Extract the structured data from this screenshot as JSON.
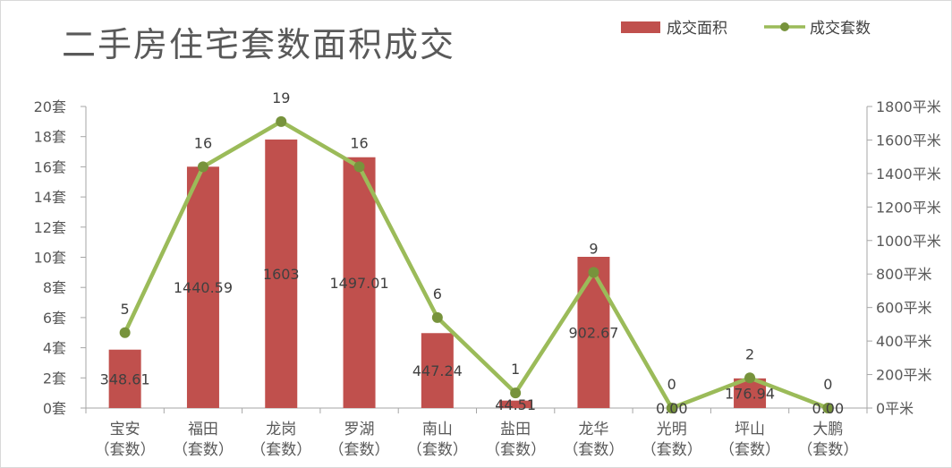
{
  "chart_data": {
    "type": "bar",
    "title": "二手房住宅套数面积成交",
    "categories": [
      [
        "宝安",
        "（套数）"
      ],
      [
        "福田",
        "（套数）"
      ],
      [
        "龙岗",
        "（套数）"
      ],
      [
        "罗湖",
        "（套数）"
      ],
      [
        "南山",
        "（套数）"
      ],
      [
        "盐田",
        "（套数）"
      ],
      [
        "龙华",
        "（套数）"
      ],
      [
        "光明",
        "（套数）"
      ],
      [
        "坪山",
        "（套数）"
      ],
      [
        "大鹏",
        "（套数）"
      ]
    ],
    "series": [
      {
        "name": "成交面积",
        "type": "bar",
        "axis": "right",
        "color": "#c0504d",
        "values": [
          348.61,
          1440.59,
          1603,
          1497.01,
          447.24,
          44.51,
          902.67,
          0,
          176.94,
          0
        ],
        "labels": [
          "348.61",
          "1440.59",
          "1603",
          "1497.01",
          "447.24",
          "44.51",
          "902.67",
          "0.00",
          "176.94",
          "0.00"
        ]
      },
      {
        "name": "成交套数",
        "type": "line",
        "axis": "left",
        "color": "#9bbb59",
        "values": [
          5,
          16,
          19,
          16,
          6,
          1,
          9,
          0,
          2,
          0
        ],
        "labels": [
          "5",
          "16",
          "19",
          "16",
          "6",
          "1",
          "9",
          "0",
          "2",
          "0"
        ]
      }
    ],
    "y_left": {
      "min": 0,
      "max": 20,
      "step": 2,
      "ticks": [
        "0套",
        "2套",
        "4套",
        "6套",
        "8套",
        "10套",
        "12套",
        "14套",
        "16套",
        "18套",
        "20套"
      ]
    },
    "y_right": {
      "min": 0,
      "max": 1800,
      "step": 200,
      "ticks": [
        "0平米",
        "200平米",
        "400平米",
        "600平米",
        "800平米",
        "1000平米",
        "1200平米",
        "1400平米",
        "1600平米",
        "1800平米"
      ]
    },
    "grid": false,
    "legend_position": "top-right"
  }
}
